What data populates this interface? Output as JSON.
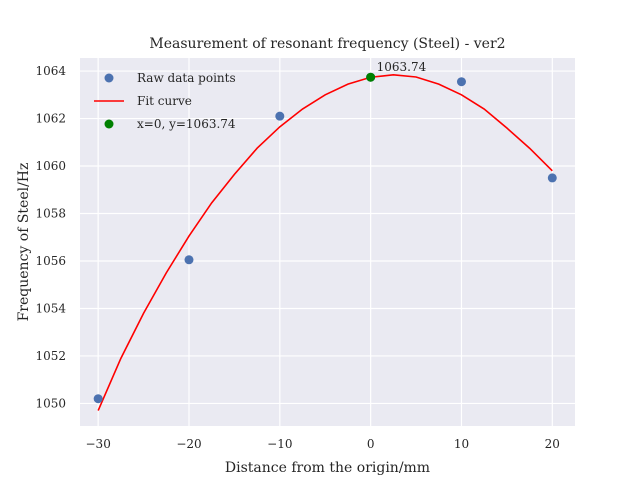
{
  "chart_data": {
    "type": "scatter",
    "title": "Measurement of resonant frequency (Steel) - ver2",
    "xlabel": "Distance from the origin/mm",
    "ylabel": "Frequency of Steel/Hz",
    "xlim": [
      -32,
      22.5
    ],
    "ylim": [
      1049.05,
      1064.55
    ],
    "xticks": [
      -30,
      -20,
      -10,
      0,
      10,
      20
    ],
    "xtick_labels": [
      "−30",
      "−20",
      "−10",
      "0",
      "10",
      "20"
    ],
    "yticks": [
      1050,
      1052,
      1054,
      1056,
      1058,
      1060,
      1062,
      1064
    ],
    "ytick_labels": [
      "1050",
      "1052",
      "1054",
      "1056",
      "1058",
      "1060",
      "1062",
      "1064"
    ],
    "grid": true,
    "legend_position": "upper-left",
    "series": [
      {
        "name": "Raw data points",
        "kind": "scatter",
        "color": "#4c72b0",
        "x": [
          -30,
          -20,
          -10,
          0,
          10,
          20
        ],
        "y": [
          1050.2,
          1056.05,
          1062.1,
          1063.74,
          1063.55,
          1059.5
        ]
      },
      {
        "name": "Fit curve",
        "kind": "line",
        "color": "#ff0000",
        "x": [
          -30,
          -27.5,
          -25,
          -22.5,
          -20,
          -17.5,
          -15,
          -12.5,
          -10,
          -7.5,
          -5,
          -2.5,
          0,
          2.5,
          5,
          7.5,
          10,
          12.5,
          15,
          17.5,
          20
        ],
        "y": [
          1049.7,
          1051.9,
          1053.8,
          1055.5,
          1057.05,
          1058.45,
          1059.65,
          1060.75,
          1061.65,
          1062.4,
          1063.0,
          1063.45,
          1063.74,
          1063.84,
          1063.75,
          1063.45,
          1063.0,
          1062.4,
          1061.6,
          1060.75,
          1059.8
        ]
      },
      {
        "name": "x=0, y=1063.74",
        "kind": "scatter",
        "color": "#008000",
        "x": [
          0
        ],
        "y": [
          1063.74
        ]
      }
    ],
    "annotations": [
      {
        "text": "1063.74",
        "x": 0,
        "y": 1063.74
      }
    ]
  }
}
